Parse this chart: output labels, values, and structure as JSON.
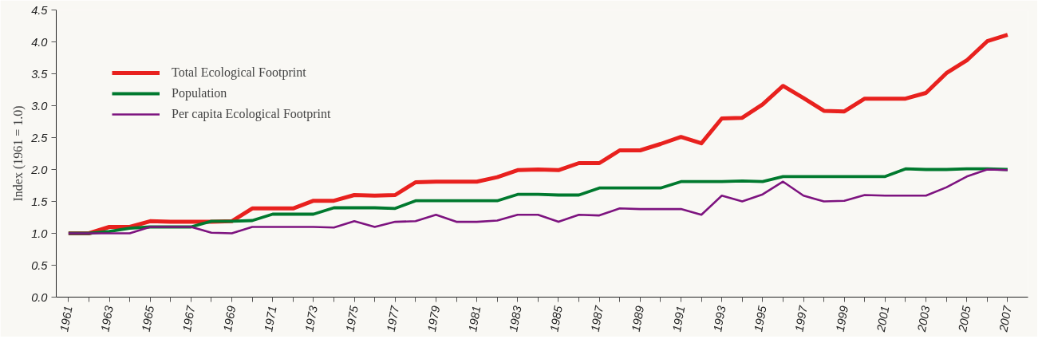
{
  "chart_data": {
    "type": "line",
    "ylabel": "Index (1961 = 1.0)",
    "x": [
      1961,
      1962,
      1963,
      1964,
      1965,
      1966,
      1967,
      1968,
      1969,
      1970,
      1971,
      1972,
      1973,
      1974,
      1975,
      1976,
      1977,
      1978,
      1979,
      1980,
      1981,
      1982,
      1983,
      1984,
      1985,
      1986,
      1987,
      1988,
      1989,
      1990,
      1991,
      1992,
      1993,
      1994,
      1995,
      1996,
      1997,
      1998,
      1999,
      2000,
      2001,
      2002,
      2003,
      2004,
      2005,
      2006,
      2007
    ],
    "series": [
      {
        "name": "Total Ecological Footprint",
        "color": "#e8211e",
        "values": [
          1.0,
          1.0,
          1.1,
          1.1,
          1.19,
          1.18,
          1.18,
          1.18,
          1.19,
          1.39,
          1.39,
          1.39,
          1.51,
          1.51,
          1.6,
          1.59,
          1.6,
          1.8,
          1.81,
          1.81,
          1.81,
          1.88,
          1.99,
          2.0,
          1.99,
          2.1,
          2.1,
          2.3,
          2.3,
          2.4,
          2.51,
          2.41,
          2.8,
          2.81,
          3.02,
          3.31,
          3.12,
          2.92,
          2.91,
          3.11,
          3.11,
          3.11,
          3.2,
          3.51,
          3.71,
          4.01,
          4.11
        ]
      },
      {
        "name": "Population",
        "color": "#00792e",
        "values": [
          1.0,
          1.0,
          1.03,
          1.08,
          1.1,
          1.1,
          1.1,
          1.19,
          1.19,
          1.2,
          1.3,
          1.3,
          1.3,
          1.4,
          1.4,
          1.4,
          1.39,
          1.51,
          1.51,
          1.51,
          1.51,
          1.51,
          1.61,
          1.61,
          1.6,
          1.6,
          1.71,
          1.71,
          1.71,
          1.71,
          1.81,
          1.81,
          1.81,
          1.82,
          1.81,
          1.89,
          1.89,
          1.89,
          1.89,
          1.89,
          1.89,
          2.01,
          2.0,
          2.0,
          2.01,
          2.01,
          2.0
        ]
      },
      {
        "name": "Per capita Ecological Footprint",
        "color": "#7d137f",
        "values": [
          1.0,
          1.0,
          1.0,
          1.0,
          1.1,
          1.1,
          1.1,
          1.01,
          1.0,
          1.1,
          1.1,
          1.1,
          1.1,
          1.09,
          1.19,
          1.1,
          1.18,
          1.19,
          1.29,
          1.18,
          1.18,
          1.2,
          1.29,
          1.29,
          1.18,
          1.29,
          1.28,
          1.39,
          1.38,
          1.38,
          1.38,
          1.29,
          1.59,
          1.5,
          1.61,
          1.81,
          1.59,
          1.5,
          1.51,
          1.6,
          1.59,
          1.59,
          1.59,
          1.72,
          1.89,
          2.0,
          1.99
        ]
      }
    ],
    "xlim": [
      1960.4,
      2008
    ],
    "xticks": [
      1961,
      {
        "value": 1962,
        "label": null
      },
      1963,
      {
        "value": 1964,
        "label": null
      },
      1965,
      {
        "value": 1966,
        "label": null
      },
      1967,
      {
        "value": 1968,
        "label": null
      },
      1969,
      {
        "value": 1970,
        "label": null
      },
      1971,
      {
        "value": 1972,
        "label": null
      },
      1973,
      {
        "value": 1974,
        "label": null
      },
      1975,
      {
        "value": 1976,
        "label": null
      },
      1977,
      {
        "value": 1978,
        "label": null
      },
      1979,
      {
        "value": 1980,
        "label": null
      },
      1981,
      {
        "value": 1982,
        "label": null
      },
      1983,
      {
        "value": 1984,
        "label": null
      },
      1985,
      {
        "value": 1986,
        "label": null
      },
      1987,
      {
        "value": 1988,
        "label": null
      },
      1989,
      {
        "value": 1990,
        "label": null
      },
      1991,
      {
        "value": 1992,
        "label": null
      },
      1993,
      {
        "value": 1994,
        "label": null
      },
      1995,
      {
        "value": 1996,
        "label": null
      },
      1997,
      {
        "value": 1998,
        "label": null
      },
      1999,
      {
        "value": 2000,
        "label": null
      },
      2001,
      {
        "value": 2002,
        "label": null
      },
      2003,
      {
        "value": 2004,
        "label": null
      },
      2005,
      {
        "value": 2006,
        "label": null
      },
      2007
    ],
    "ylim": [
      0,
      4.5
    ],
    "yticks": [
      {
        "value": 0,
        "label": "0.0"
      },
      {
        "value": 0.5,
        "label": "0.5"
      },
      {
        "value": 1,
        "label": "1.0"
      },
      {
        "value": 1.5,
        "label": "1.5"
      },
      {
        "value": 2,
        "label": "2.0"
      },
      {
        "value": 2.5,
        "label": "2.5"
      },
      {
        "value": 3,
        "label": "3.0"
      },
      {
        "value": 3.5,
        "label": "3.5"
      },
      {
        "value": 4,
        "label": "4.0"
      },
      {
        "value": 4.5,
        "label": "4.5"
      }
    ],
    "grid": false,
    "legend": "top left",
    "line_style": "solid"
  }
}
